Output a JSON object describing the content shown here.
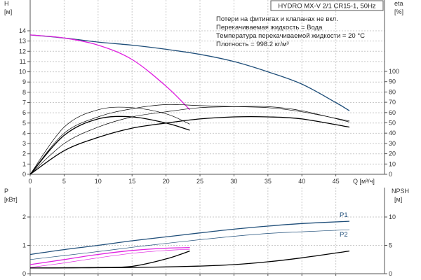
{
  "header": {
    "title": "HYDRO MX-V 2/1 CR15-1, 50Hz",
    "notes": [
      "Потери на фитингах и клапанах не вкл.",
      "Перекачиваемая жидкость = Вода",
      "Температура перекачиваемой жидкости = 20 °C",
      "Плотность = 998.2 кг/м³"
    ]
  },
  "chart_data": [
    {
      "type": "line",
      "name": "top",
      "xlabel": "Q [м³/ч]",
      "ylabel_left": [
        "H",
        "[м]"
      ],
      "ylabel_right": [
        "eta",
        "[%]"
      ],
      "xlim": [
        0,
        50
      ],
      "ylim_left": [
        0,
        15
      ],
      "ylim_right": [
        0,
        150
      ],
      "xticks": [
        0,
        5,
        10,
        15,
        20,
        25,
        30,
        35,
        40,
        45
      ],
      "yticks_left": [
        0,
        1,
        2,
        3,
        4,
        5,
        6,
        7,
        8,
        9,
        10,
        11,
        12,
        13,
        14
      ],
      "yticks_right": [
        0,
        10,
        20,
        30,
        40,
        50,
        60,
        70,
        80,
        90,
        100
      ],
      "grid": true,
      "series": [
        {
          "axis": "left",
          "color": "#1f4e79",
          "width": 1.3,
          "x": [
            0,
            5,
            10,
            15,
            20,
            25,
            30,
            35,
            40,
            45,
            47
          ],
          "y": [
            13.6,
            13.3,
            12.9,
            12.6,
            12.2,
            11.7,
            11.0,
            10.0,
            8.8,
            7.0,
            6.2
          ]
        },
        {
          "axis": "left",
          "color": "#e020e0",
          "width": 1.3,
          "x": [
            0,
            5,
            10,
            15,
            20,
            23.5
          ],
          "y": [
            13.6,
            13.3,
            12.6,
            11.2,
            8.6,
            6.3
          ]
        },
        {
          "axis": "left",
          "color": "#000000",
          "width": 1.3,
          "x": [
            0,
            5,
            10,
            15,
            20,
            23.5
          ],
          "y": [
            0,
            3.8,
            5.4,
            5.6,
            5.0,
            4.3
          ]
        },
        {
          "axis": "left",
          "color": "#000000",
          "width": 0.7,
          "x": [
            0,
            5,
            10,
            15,
            20,
            23.5
          ],
          "y": [
            0,
            4.6,
            6.3,
            6.5,
            5.9,
            4.9
          ]
        },
        {
          "axis": "left",
          "color": "#000000",
          "width": 1.3,
          "x": [
            0,
            5,
            10,
            15,
            20,
            25,
            30,
            35,
            40,
            47
          ],
          "y": [
            0,
            2.3,
            3.6,
            4.5,
            5.0,
            5.4,
            5.6,
            5.6,
            5.4,
            4.6
          ]
        },
        {
          "axis": "left",
          "color": "#000000",
          "width": 0.7,
          "x": [
            0,
            5,
            10,
            15,
            20,
            25,
            30,
            35,
            40,
            47
          ],
          "y": [
            0,
            3.0,
            4.6,
            5.6,
            6.1,
            6.5,
            6.6,
            6.6,
            6.2,
            5.1
          ]
        },
        {
          "axis": "left",
          "color": "#000000",
          "width": 0.7,
          "x": [
            0,
            5,
            10,
            15,
            20,
            25,
            30,
            35,
            40,
            47
          ],
          "y": [
            0,
            4.0,
            5.6,
            6.4,
            6.8,
            6.7,
            6.6,
            6.5,
            6.1,
            5.2
          ]
        }
      ]
    },
    {
      "type": "line",
      "name": "bottom",
      "ylabel_left": [
        "P",
        "[кВт]"
      ],
      "ylabel_right": [
        "NPSH",
        "[м]"
      ],
      "xlim": [
        0,
        50
      ],
      "ylim_left": [
        0,
        2.5
      ],
      "ylim_right": [
        0,
        12.5
      ],
      "xticks": [
        0,
        5,
        10,
        15,
        20,
        25,
        30,
        35,
        40,
        45
      ],
      "yticks_left": [
        0,
        1,
        2
      ],
      "yticks_right": [
        0,
        5,
        10
      ],
      "grid": true,
      "series": [
        {
          "axis": "left",
          "color": "#1f4e79",
          "width": 1.3,
          "name": "P1",
          "x": [
            0,
            5,
            10,
            15,
            20,
            25,
            30,
            35,
            40,
            47
          ],
          "y": [
            0.68,
            0.85,
            1.0,
            1.16,
            1.3,
            1.44,
            1.57,
            1.68,
            1.77,
            1.85
          ]
        },
        {
          "axis": "left",
          "color": "#1f4e79",
          "width": 0.7,
          "name": "P2",
          "x": [
            0,
            5,
            10,
            15,
            20,
            25,
            30,
            35,
            40,
            47
          ],
          "y": [
            0.5,
            0.64,
            0.78,
            0.93,
            1.07,
            1.2,
            1.32,
            1.42,
            1.48,
            1.55
          ]
        },
        {
          "axis": "left",
          "color": "#e020e0",
          "width": 1.3,
          "x": [
            0,
            5,
            10,
            15,
            20,
            23.5
          ],
          "y": [
            0.32,
            0.5,
            0.68,
            0.82,
            0.9,
            0.92
          ]
        },
        {
          "axis": "left",
          "color": "#e020e0",
          "width": 0.7,
          "x": [
            0,
            5,
            10,
            15,
            20,
            23.5
          ],
          "y": [
            0.22,
            0.38,
            0.56,
            0.72,
            0.82,
            0.86
          ]
        },
        {
          "axis": "right",
          "color": "#000000",
          "width": 1.3,
          "x": [
            0,
            5,
            10,
            15,
            20,
            23.5
          ],
          "y": [
            1.0,
            1.05,
            1.1,
            1.3,
            2.6,
            4.0
          ]
        },
        {
          "axis": "right",
          "color": "#000000",
          "width": 1.3,
          "x": [
            0,
            5,
            10,
            15,
            20,
            25,
            30,
            35,
            40,
            47
          ],
          "y": [
            1.0,
            1.02,
            1.05,
            1.1,
            1.2,
            1.35,
            1.6,
            2.1,
            2.8,
            4.0
          ]
        }
      ]
    }
  ]
}
